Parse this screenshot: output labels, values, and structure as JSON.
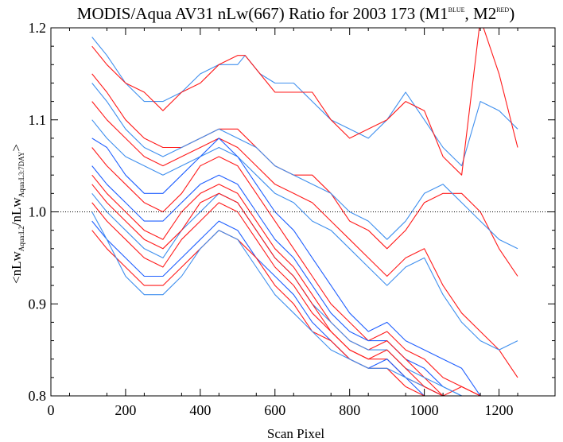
{
  "chart_data": {
    "type": "line",
    "title": {
      "main": "MODIS/Aqua AV31 nLw(667) Ratio for 2003 173 (M1",
      "sup1": "BLUE",
      "mid": ", M2",
      "sup2": "RED",
      "end": ")"
    },
    "xlabel": "Scan Pixel",
    "ylabel": {
      "open": "<nLw",
      "sub1": "Aqua:L2",
      "mid": "/nLw",
      "sub2": "Aqua:L3:7DAY",
      "close": ">"
    },
    "xlim": [
      0,
      1350
    ],
    "ylim": [
      0.8,
      1.2
    ],
    "xticks": [
      "0",
      "200",
      "400",
      "600",
      "800",
      "1000",
      "1200"
    ],
    "xtick_values": [
      0,
      200,
      400,
      600,
      800,
      1000,
      1200
    ],
    "yticks": [
      "0.8",
      "0.9",
      "1.0",
      "1.1",
      "1.2"
    ],
    "ytick_values": [
      0.8,
      0.9,
      1.0,
      1.1,
      1.2
    ],
    "reference_line": 1.0,
    "colors": {
      "M1": "#1f5fff",
      "M2": "#ff1a1a",
      "M1_light": "#3f8fee"
    },
    "series": [
      {
        "group": "M1",
        "color": "#3f8fee",
        "x": [
          110,
          150,
          200,
          250,
          300,
          350,
          400,
          450,
          500,
          520,
          560,
          600,
          650,
          700,
          750,
          800,
          850,
          900,
          950,
          1000,
          1050,
          1100,
          1150,
          1200,
          1250
        ],
        "y": [
          1.19,
          1.17,
          1.14,
          1.12,
          1.12,
          1.13,
          1.15,
          1.16,
          1.16,
          1.17,
          1.15,
          1.14,
          1.14,
          1.12,
          1.1,
          1.09,
          1.08,
          1.1,
          1.13,
          1.1,
          1.07,
          1.05,
          1.12,
          1.11,
          1.09
        ]
      },
      {
        "group": "M2",
        "color": "#ff1a1a",
        "x": [
          110,
          150,
          200,
          250,
          300,
          350,
          400,
          450,
          500,
          520,
          560,
          600,
          650,
          700,
          750,
          800,
          850,
          900,
          950,
          1000,
          1050,
          1100,
          1150,
          1200,
          1250
        ],
        "y": [
          1.18,
          1.16,
          1.14,
          1.13,
          1.11,
          1.13,
          1.14,
          1.16,
          1.17,
          1.17,
          1.15,
          1.13,
          1.13,
          1.13,
          1.1,
          1.08,
          1.09,
          1.1,
          1.12,
          1.11,
          1.06,
          1.04,
          1.21,
          1.15,
          1.07
        ]
      },
      {
        "group": "M2",
        "color": "#ff1a1a",
        "x": [
          110,
          150,
          200,
          250,
          300,
          350,
          400,
          450,
          500,
          550,
          600,
          650,
          700,
          750,
          800,
          850,
          900,
          950,
          1000,
          1050,
          1100,
          1150,
          1200,
          1250
        ],
        "y": [
          1.15,
          1.13,
          1.1,
          1.08,
          1.07,
          1.07,
          1.08,
          1.09,
          1.09,
          1.07,
          1.05,
          1.04,
          1.04,
          1.02,
          0.99,
          0.98,
          0.96,
          0.98,
          1.01,
          1.02,
          1.02,
          1.0,
          0.96,
          0.93
        ]
      },
      {
        "group": "M1",
        "color": "#3f8fee",
        "x": [
          110,
          150,
          200,
          250,
          300,
          350,
          400,
          450,
          500,
          550,
          600,
          650,
          700,
          750,
          800,
          850,
          900,
          950,
          1000,
          1050,
          1100,
          1150,
          1200,
          1250
        ],
        "y": [
          1.14,
          1.12,
          1.09,
          1.07,
          1.06,
          1.07,
          1.08,
          1.09,
          1.08,
          1.07,
          1.05,
          1.04,
          1.03,
          1.02,
          1.0,
          0.99,
          0.97,
          0.99,
          1.02,
          1.03,
          1.01,
          0.99,
          0.97,
          0.96
        ]
      },
      {
        "group": "M2",
        "color": "#ff1a1a",
        "x": [
          110,
          150,
          200,
          250,
          300,
          350,
          400,
          450,
          500,
          550,
          600,
          650,
          700,
          750,
          800,
          850,
          900,
          950,
          1000,
          1050,
          1100,
          1150,
          1200,
          1250
        ],
        "y": [
          1.12,
          1.1,
          1.08,
          1.06,
          1.05,
          1.06,
          1.07,
          1.08,
          1.07,
          1.05,
          1.03,
          1.02,
          1.01,
          0.99,
          0.97,
          0.95,
          0.93,
          0.95,
          0.96,
          0.92,
          0.89,
          0.87,
          0.85,
          0.82
        ]
      },
      {
        "group": "M1",
        "color": "#3f8fee",
        "x": [
          110,
          150,
          200,
          250,
          300,
          350,
          400,
          450,
          500,
          550,
          600,
          650,
          700,
          750,
          800,
          850,
          900,
          950,
          1000,
          1050,
          1100,
          1150,
          1200,
          1250
        ],
        "y": [
          1.1,
          1.08,
          1.06,
          1.05,
          1.04,
          1.05,
          1.06,
          1.07,
          1.06,
          1.04,
          1.02,
          1.01,
          0.99,
          0.98,
          0.96,
          0.94,
          0.92,
          0.94,
          0.95,
          0.91,
          0.88,
          0.86,
          0.85,
          0.86
        ]
      },
      {
        "group": "M1",
        "color": "#1f5fff",
        "x": [
          110,
          150,
          200,
          250,
          300,
          350,
          400,
          450,
          500,
          550,
          600,
          650,
          700,
          750,
          800,
          850,
          900,
          950,
          1000,
          1050,
          1100,
          1150
        ],
        "y": [
          1.08,
          1.07,
          1.04,
          1.02,
          1.02,
          1.04,
          1.06,
          1.08,
          1.06,
          1.03,
          1.0,
          0.98,
          0.95,
          0.92,
          0.89,
          0.87,
          0.88,
          0.86,
          0.85,
          0.84,
          0.83,
          0.8
        ]
      },
      {
        "group": "M2",
        "color": "#ff1a1a",
        "x": [
          110,
          150,
          200,
          250,
          300,
          350,
          400,
          450,
          500,
          550,
          600,
          650,
          700,
          750,
          800,
          850,
          900,
          950,
          1000,
          1050,
          1100,
          1150
        ],
        "y": [
          1.07,
          1.05,
          1.03,
          1.01,
          1.0,
          1.02,
          1.05,
          1.06,
          1.05,
          1.02,
          0.99,
          0.96,
          0.93,
          0.9,
          0.88,
          0.86,
          0.87,
          0.85,
          0.84,
          0.82,
          0.81,
          0.8
        ]
      },
      {
        "group": "M1",
        "color": "#1f5fff",
        "x": [
          110,
          150,
          200,
          250,
          300,
          350,
          400,
          450,
          500,
          550,
          600,
          650,
          700,
          750,
          800,
          850,
          900,
          950,
          1000,
          1050,
          1100,
          1150
        ],
        "y": [
          1.05,
          1.03,
          1.01,
          0.99,
          0.99,
          1.01,
          1.03,
          1.04,
          1.03,
          1.0,
          0.97,
          0.95,
          0.92,
          0.89,
          0.87,
          0.86,
          0.86,
          0.84,
          0.83,
          0.81,
          0.8,
          0.8
        ]
      },
      {
        "group": "M2",
        "color": "#ff1a1a",
        "x": [
          110,
          150,
          200,
          250,
          300,
          350,
          400,
          450,
          500,
          550,
          600,
          650,
          700,
          750,
          800,
          850,
          900,
          950,
          1000,
          1050,
          1100,
          1150
        ],
        "y": [
          1.04,
          1.02,
          1.0,
          0.98,
          0.97,
          1.0,
          1.02,
          1.03,
          1.02,
          0.99,
          0.96,
          0.94,
          0.91,
          0.88,
          0.86,
          0.85,
          0.86,
          0.84,
          0.82,
          0.8,
          0.81,
          0.8
        ]
      },
      {
        "group": "M1",
        "color": "#3f8fee",
        "x": [
          110,
          150,
          200,
          250,
          300,
          350,
          400,
          450,
          500,
          550,
          600,
          650,
          700,
          750,
          800,
          850,
          900,
          950,
          1000,
          1050,
          1100,
          1150
        ],
        "y": [
          1.02,
          1.0,
          0.98,
          0.96,
          0.95,
          0.98,
          1.0,
          1.02,
          1.01,
          0.98,
          0.95,
          0.93,
          0.9,
          0.88,
          0.86,
          0.85,
          0.85,
          0.83,
          0.82,
          0.81,
          0.8,
          0.8
        ]
      },
      {
        "group": "M2",
        "color": "#ff1a1a",
        "x": [
          110,
          150,
          200,
          250,
          300,
          350,
          400,
          450,
          500,
          550,
          600,
          650,
          700,
          750,
          800,
          850,
          900,
          950,
          1000,
          1050,
          1100,
          1150
        ],
        "y": [
          1.01,
          0.99,
          0.97,
          0.95,
          0.94,
          0.97,
          0.99,
          1.01,
          1.0,
          0.97,
          0.94,
          0.92,
          0.89,
          0.87,
          0.85,
          0.84,
          0.84,
          0.82,
          0.81,
          0.8,
          0.8,
          0.8
        ]
      },
      {
        "group": "M1",
        "color": "#1f5fff",
        "x": [
          110,
          150,
          200,
          250,
          300,
          350,
          400,
          450,
          500,
          550,
          600,
          650,
          700,
          750,
          800,
          850,
          900,
          950,
          1000,
          1050,
          1100,
          1150
        ],
        "y": [
          0.99,
          0.97,
          0.95,
          0.93,
          0.93,
          0.95,
          0.97,
          0.99,
          0.98,
          0.95,
          0.93,
          0.91,
          0.88,
          0.86,
          0.84,
          0.83,
          0.84,
          0.82,
          0.8,
          0.8,
          0.8,
          0.8
        ]
      },
      {
        "group": "M2",
        "color": "#ff1a1a",
        "x": [
          110,
          150,
          200,
          250,
          300,
          350,
          400,
          450,
          500,
          550,
          600,
          650,
          700,
          750,
          800,
          850,
          900,
          950,
          1000,
          1050,
          1100,
          1150
        ],
        "y": [
          0.98,
          0.96,
          0.94,
          0.92,
          0.92,
          0.94,
          0.96,
          0.98,
          0.97,
          0.95,
          0.92,
          0.9,
          0.87,
          0.86,
          0.84,
          0.83,
          0.83,
          0.81,
          0.8,
          0.8,
          0.8,
          0.8
        ]
      },
      {
        "group": "M1",
        "color": "#3f8fee",
        "x": [
          110,
          150,
          200,
          250,
          300,
          350,
          400,
          450,
          500,
          550,
          600,
          650,
          700,
          750,
          800,
          850,
          900,
          950,
          1000,
          1050,
          1100,
          1150
        ],
        "y": [
          1.0,
          0.97,
          0.93,
          0.91,
          0.91,
          0.93,
          0.96,
          0.98,
          0.97,
          0.94,
          0.91,
          0.89,
          0.87,
          0.85,
          0.84,
          0.83,
          0.83,
          0.82,
          0.81,
          0.8,
          0.8,
          0.8
        ]
      },
      {
        "group": "M2",
        "color": "#ff1a1a",
        "x": [
          110,
          150,
          200,
          250,
          300,
          350,
          400,
          450,
          500,
          550,
          600,
          650,
          700,
          750,
          800,
          850,
          900,
          950,
          1000,
          1050,
          1100,
          1150
        ],
        "y": [
          1.03,
          1.01,
          0.99,
          0.97,
          0.96,
          0.98,
          1.01,
          1.02,
          1.01,
          0.98,
          0.95,
          0.93,
          0.9,
          0.87,
          0.85,
          0.84,
          0.85,
          0.83,
          0.81,
          0.8,
          0.8,
          0.8
        ]
      }
    ]
  }
}
